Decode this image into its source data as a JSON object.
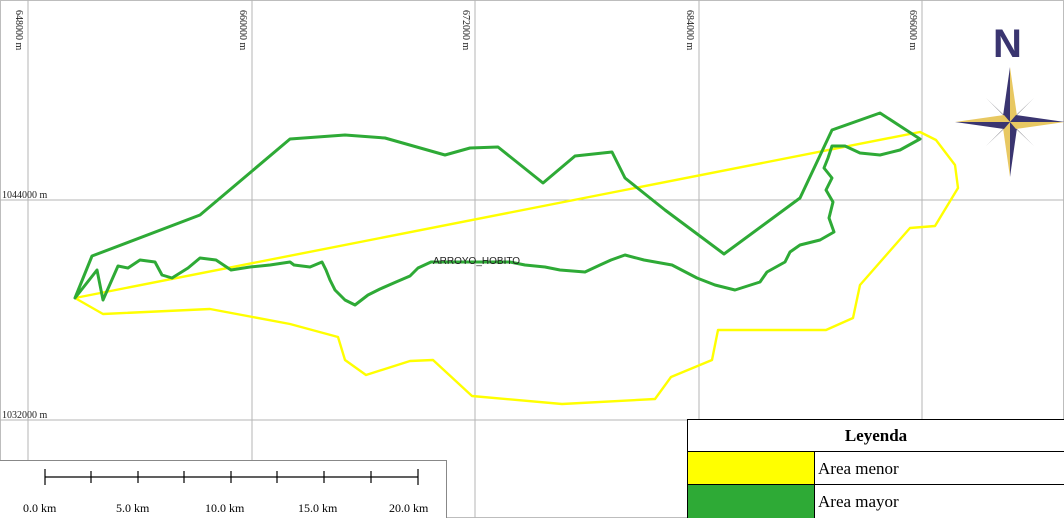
{
  "grid": {
    "easting_labels": [
      "648000 m",
      "660000 m",
      "672000 m",
      "684000 m",
      "696000 m"
    ],
    "northing_labels": [
      "1044000 m",
      "1032000 m"
    ]
  },
  "features": {
    "stream_label": "ARROYO_HOBITO"
  },
  "north_arrow": {
    "letter": "N",
    "icon": "compass-rose-icon"
  },
  "legend": {
    "title": "Leyenda",
    "items": [
      {
        "label": "Area menor",
        "color": "#ffff00"
      },
      {
        "label": "Area mayor",
        "color": "#2eaa36"
      }
    ]
  },
  "scale_bar": {
    "labels": [
      "0.0 km",
      "5.0 km",
      "10.0 km",
      "15.0 km",
      "20.0 km"
    ]
  },
  "colors": {
    "area_menor": "#ffff00",
    "area_mayor": "#2eaa36",
    "grid": "#b0b0b0",
    "north": "#3a3570",
    "compass_gold": "#e8c862",
    "compass_gray": "#7f7f86"
  }
}
